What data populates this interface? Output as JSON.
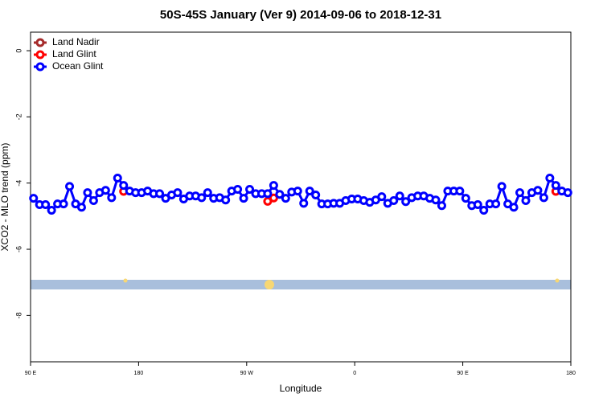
{
  "chart_data": {
    "type": "line",
    "title": "50S-45S January (Ver 9)   2014-09-06 to 2018-12-31",
    "x_label": "Longitude",
    "y_label": "XCO2 - MLO trend (ppm)",
    "x": [
      92.5,
      97.5,
      102.5,
      107.5,
      112.5,
      117.5,
      122.5,
      127.5,
      132.5,
      137.5,
      142.5,
      147.5,
      152.5,
      157.5,
      162.5,
      167.5,
      172.5,
      177.5,
      182.5,
      187.5,
      192.5,
      197.5,
      202.5,
      207.5,
      212.5,
      217.5,
      222.5,
      227.5,
      232.5,
      237.5,
      242.5,
      247.5,
      252.5,
      257.5,
      262.5,
      267.5,
      272.5,
      277.5,
      282.5,
      287.5,
      292.5,
      297.5,
      302.5,
      307.5,
      312.5,
      317.5,
      322.5,
      327.5,
      332.5,
      337.5,
      342.5,
      347.5,
      352.5,
      357.5,
      362.5,
      367.5,
      372.5,
      377.5,
      382.5,
      387.5,
      392.5,
      397.5,
      402.5,
      407.5,
      412.5,
      417.5,
      422.5,
      427.5,
      432.5,
      437.5,
      442.5,
      447.5,
      452.5,
      457.5,
      462.5,
      467.5,
      472.5,
      477.5,
      482.5,
      487.5,
      492.5,
      497.5,
      502.5,
      507.5,
      512.5,
      517.5,
      522.5,
      527.5,
      532.5,
      537.5
    ],
    "series": [
      {
        "name": "Land Nadir",
        "color": "#a52a2a",
        "values": [
          null,
          null,
          null,
          null,
          null,
          null,
          null,
          null,
          null,
          null,
          null,
          null,
          null,
          null,
          null,
          null,
          null,
          null,
          null,
          null,
          null,
          null,
          null,
          null,
          null,
          null,
          null,
          null,
          null,
          null,
          null,
          null,
          null,
          null,
          null,
          null,
          null,
          null,
          null,
          null,
          null,
          null,
          null,
          null,
          null,
          null,
          null,
          null,
          null,
          null,
          null,
          null,
          null,
          null,
          null,
          null,
          null,
          null,
          null,
          null,
          null,
          null,
          null,
          null,
          null,
          null,
          null,
          null,
          null,
          null,
          null,
          null,
          null,
          null,
          null,
          null,
          null,
          null,
          null,
          null,
          null,
          null,
          null,
          null,
          null,
          null,
          null,
          null,
          null,
          null
        ]
      },
      {
        "name": "Land Glint",
        "color": "#ff0000",
        "values": [
          null,
          null,
          null,
          null,
          null,
          null,
          null,
          null,
          null,
          null,
          null,
          null,
          null,
          null,
          null,
          -4.25,
          null,
          null,
          null,
          null,
          null,
          null,
          null,
          null,
          null,
          null,
          null,
          null,
          null,
          null,
          null,
          null,
          null,
          null,
          null,
          null,
          null,
          null,
          null,
          -4.55,
          -4.45,
          null,
          null,
          null,
          null,
          null,
          null,
          null,
          null,
          null,
          null,
          null,
          null,
          null,
          null,
          null,
          null,
          null,
          null,
          null,
          null,
          null,
          null,
          null,
          null,
          null,
          null,
          null,
          null,
          null,
          null,
          null,
          null,
          null,
          null,
          null,
          null,
          null,
          null,
          null,
          null,
          null,
          null,
          null,
          null,
          null,
          null,
          -4.25,
          null,
          null
        ]
      },
      {
        "name": "Ocean Glint",
        "color": "#0000ff",
        "values": [
          -4.46,
          -4.65,
          -4.65,
          -4.82,
          -4.63,
          -4.63,
          -4.1,
          -4.63,
          -4.73,
          -4.29,
          -4.53,
          -4.29,
          -4.22,
          -4.44,
          -3.85,
          -4.07,
          -4.24,
          -4.29,
          -4.29,
          -4.24,
          -4.32,
          -4.32,
          -4.46,
          -4.36,
          -4.29,
          -4.48,
          -4.39,
          -4.39,
          -4.44,
          -4.29,
          -4.46,
          -4.44,
          -4.51,
          -4.24,
          -4.19,
          -4.46,
          -4.19,
          -4.32,
          -4.32,
          -4.32,
          -4.07,
          -4.34,
          -4.46,
          -4.27,
          -4.24,
          -4.61,
          -4.24,
          -4.36,
          -4.63,
          -4.63,
          -4.61,
          -4.61,
          -4.53,
          -4.48,
          -4.48,
          -4.53,
          -4.58,
          -4.51,
          -4.41,
          -4.61,
          -4.53,
          -4.39,
          -4.56,
          -4.44,
          -4.39,
          -4.39,
          -4.46,
          -4.51,
          -4.68,
          -4.24,
          -4.24,
          -4.24,
          -4.46,
          -4.68,
          -4.65,
          -4.82,
          -4.63,
          -4.63,
          -4.1,
          -4.63,
          -4.73,
          -4.29,
          -4.53,
          -4.29,
          -4.22,
          -4.44,
          -3.85,
          -4.07,
          -4.24,
          -4.29
        ]
      }
    ],
    "xlim": [
      90,
      540
    ],
    "xticks": [
      {
        "value": 90,
        "label": "90 E"
      },
      180,
      {
        "value": 270,
        "label": "90 W"
      },
      {
        "value": 360,
        "label": "0"
      },
      {
        "value": 450,
        "label": "90 E"
      },
      {
        "value": 540,
        "label": "180"
      }
    ],
    "ylim": [
      -9.4,
      0.56
    ],
    "yticks": [
      0,
      -2,
      -4,
      -6,
      -8
    ],
    "legend": "top-left"
  }
}
